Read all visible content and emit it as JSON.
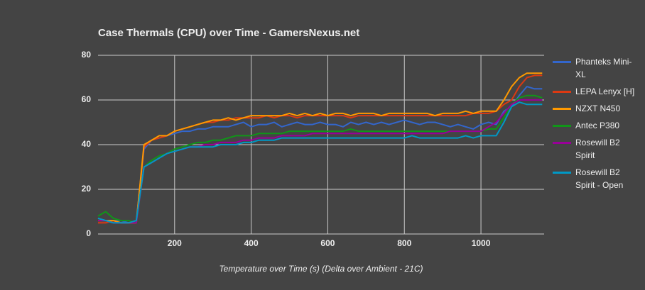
{
  "chart_data": {
    "type": "line",
    "title": "Case Thermals (CPU) over Time - GamersNexus.net",
    "x_label": "Temperature over Time (s) (Delta over Ambient - 21C)",
    "x": [
      0,
      20,
      40,
      60,
      80,
      100,
      120,
      140,
      160,
      180,
      200,
      220,
      240,
      260,
      280,
      300,
      320,
      340,
      360,
      380,
      400,
      420,
      440,
      460,
      480,
      500,
      520,
      540,
      560,
      580,
      600,
      620,
      640,
      660,
      680,
      700,
      720,
      740,
      760,
      780,
      800,
      820,
      840,
      860,
      880,
      900,
      920,
      940,
      960,
      980,
      1000,
      1020,
      1040,
      1060,
      1080,
      1100,
      1120,
      1140,
      1160
    ],
    "series": [
      {
        "name": "Phanteks Mini-XL",
        "color": "#3366cc",
        "values": [
          7,
          6,
          6,
          6,
          5,
          6,
          38,
          42,
          43,
          44,
          45,
          46,
          46,
          47,
          47,
          48,
          48,
          48,
          49,
          50,
          48,
          49,
          49,
          50,
          48,
          49,
          50,
          49,
          49,
          50,
          49,
          49,
          48,
          50,
          49,
          50,
          49,
          50,
          49,
          50,
          51,
          50,
          49,
          50,
          50,
          49,
          48,
          49,
          48,
          47,
          49,
          50,
          49,
          55,
          57,
          62,
          66,
          65,
          65
        ]
      },
      {
        "name": "LEPA Lenyx [H]",
        "color": "#dc3912",
        "values": [
          5,
          5,
          6,
          5,
          5,
          5,
          39,
          42,
          43,
          44,
          46,
          47,
          48,
          49,
          50,
          50,
          51,
          51,
          52,
          52,
          52,
          52,
          53,
          52,
          53,
          53,
          52,
          53,
          53,
          53,
          53,
          53,
          53,
          52,
          53,
          53,
          53,
          53,
          53,
          53,
          53,
          53,
          53,
          53,
          53,
          53,
          53,
          53,
          53,
          54,
          54,
          54,
          55,
          58,
          60,
          66,
          70,
          71,
          71
        ]
      },
      {
        "name": "NZXT N450",
        "color": "#ff9900",
        "values": [
          6,
          6,
          6,
          5,
          5,
          5,
          40,
          42,
          44,
          44,
          46,
          47,
          48,
          49,
          50,
          51,
          51,
          52,
          51,
          52,
          53,
          53,
          53,
          53,
          53,
          54,
          53,
          54,
          53,
          54,
          53,
          54,
          54,
          53,
          54,
          54,
          54,
          53,
          54,
          54,
          54,
          54,
          54,
          54,
          53,
          54,
          54,
          54,
          55,
          54,
          55,
          55,
          55,
          60,
          66,
          70,
          72,
          72,
          72
        ]
      },
      {
        "name": "Antec P380",
        "color": "#109618",
        "values": [
          8,
          10,
          7,
          6,
          6,
          5,
          30,
          33,
          35,
          36,
          38,
          39,
          40,
          41,
          41,
          42,
          42,
          43,
          44,
          44,
          44,
          45,
          45,
          45,
          45,
          46,
          46,
          46,
          46,
          46,
          46,
          46,
          46,
          47,
          46,
          46,
          46,
          46,
          46,
          46,
          46,
          46,
          46,
          46,
          46,
          46,
          46,
          46,
          46,
          46,
          46,
          47,
          47,
          52,
          58,
          61,
          62,
          62,
          61
        ]
      },
      {
        "name": "Rosewill B2 Spirit",
        "color": "#990099",
        "values": [
          6,
          6,
          5,
          5,
          5,
          5,
          30,
          32,
          34,
          36,
          37,
          38,
          39,
          39,
          40,
          40,
          41,
          41,
          41,
          42,
          42,
          43,
          43,
          43,
          44,
          44,
          44,
          44,
          45,
          45,
          45,
          45,
          45,
          45,
          45,
          45,
          45,
          45,
          45,
          45,
          45,
          45,
          45,
          45,
          45,
          45,
          46,
          46,
          46,
          46,
          46,
          48,
          50,
          54,
          58,
          60,
          60,
          60,
          60
        ]
      },
      {
        "name": "Rosewill B2 Spirit - Open",
        "color": "#0099c6",
        "values": [
          7,
          6,
          5,
          5,
          5,
          6,
          30,
          32,
          34,
          36,
          37,
          38,
          39,
          39,
          39,
          39,
          40,
          40,
          40,
          41,
          41,
          42,
          42,
          42,
          43,
          43,
          43,
          43,
          43,
          43,
          43,
          43,
          43,
          43,
          43,
          43,
          43,
          43,
          43,
          43,
          43,
          44,
          43,
          43,
          43,
          43,
          43,
          43,
          44,
          43,
          44,
          44,
          44,
          50,
          57,
          59,
          58,
          58,
          58
        ]
      }
    ],
    "xlim": [
      0,
      1165
    ],
    "xticks": [
      200,
      400,
      600,
      800,
      1000
    ],
    "ylim": [
      0,
      80
    ],
    "yticks": [
      0,
      20,
      40,
      60,
      80
    ],
    "grid": true,
    "legend": "right"
  }
}
